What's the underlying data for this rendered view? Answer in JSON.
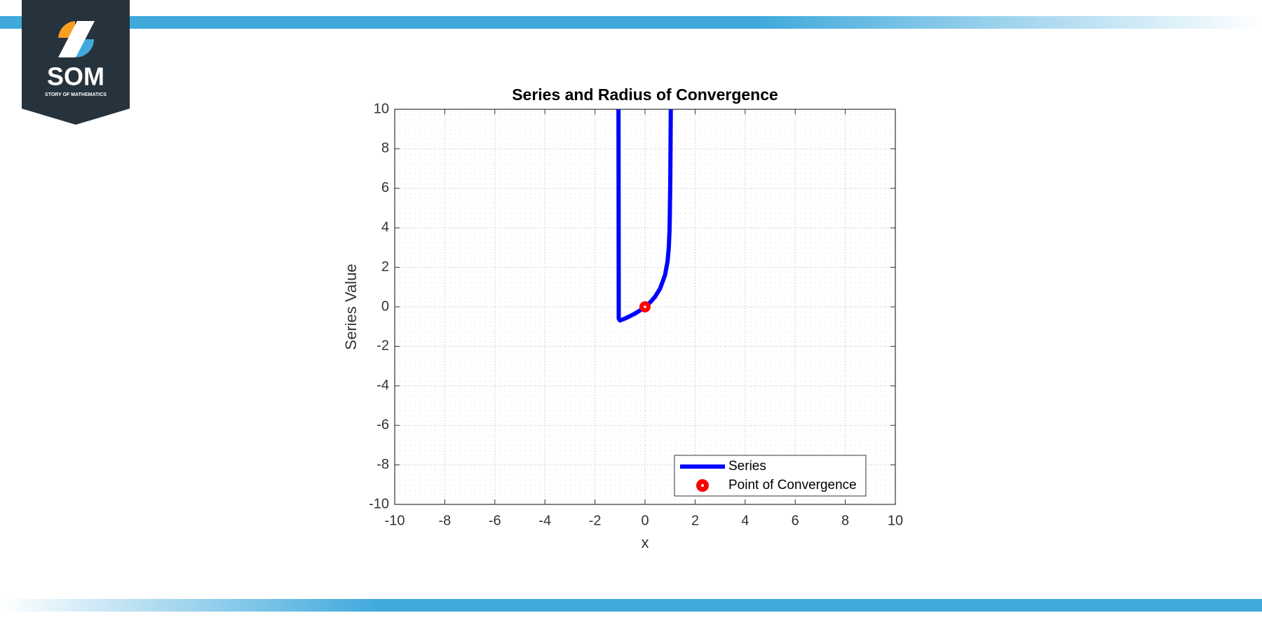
{
  "logo": {
    "title": "SOM",
    "subtitle": "STORY OF MATHEMATICS"
  },
  "chart_data": {
    "type": "line",
    "title": "Series and Radius of Convergence",
    "xlabel": "x",
    "ylabel": "Series Value",
    "xlim": [
      -10,
      10
    ],
    "ylim": [
      -10,
      10
    ],
    "xticks": [
      -10,
      -8,
      -6,
      -4,
      -2,
      0,
      2,
      4,
      6,
      8,
      10
    ],
    "yticks": [
      -10,
      -8,
      -6,
      -4,
      -2,
      0,
      2,
      4,
      6,
      8,
      10
    ],
    "grid": true,
    "legend": "lower right",
    "series": [
      {
        "name": "Series",
        "color": "#0000ff",
        "x": [
          -1.06,
          -1.05,
          -1.0,
          -0.8,
          -0.6,
          -0.4,
          -0.2,
          0,
          0.2,
          0.4,
          0.6,
          0.8,
          0.9,
          0.95,
          0.98,
          0.99,
          1.01,
          1.03
        ],
        "values": [
          10,
          -0.6,
          -0.69,
          -0.59,
          -0.47,
          -0.34,
          -0.18,
          0,
          0.22,
          0.51,
          0.92,
          1.61,
          2.3,
          3.0,
          3.9,
          4.6,
          6.5,
          10
        ]
      },
      {
        "name": "Point of Convergence",
        "color": "#ff0000",
        "type": "scatter",
        "x": [
          0
        ],
        "values": [
          0
        ]
      }
    ]
  }
}
